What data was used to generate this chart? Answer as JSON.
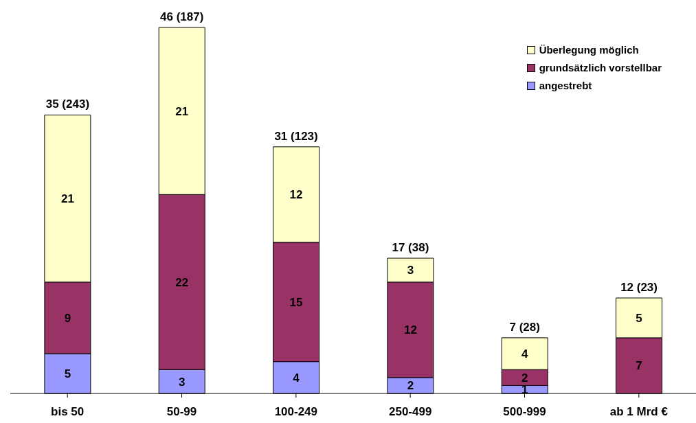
{
  "chart_data": {
    "type": "bar",
    "stacked": true,
    "categories": [
      "bis 50",
      "50-99",
      "100-249",
      "250-499",
      "500-999",
      "ab 1 Mrd €"
    ],
    "series": [
      {
        "name": "angestrebt",
        "color": "#9999ff",
        "values": [
          5,
          3,
          4,
          2,
          1,
          null
        ]
      },
      {
        "name": "grundsätzlich vorstellbar",
        "color": "#993366",
        "values": [
          9,
          22,
          15,
          12,
          2,
          7
        ]
      },
      {
        "name": "Überlegung möglich",
        "color": "#ffffcc",
        "values": [
          21,
          21,
          12,
          3,
          4,
          5
        ]
      }
    ],
    "totals": [
      "35 (243)",
      "46 (187)",
      "31 (123)",
      "17 (38)",
      "7 (28)",
      "12 (23)"
    ],
    "data_labels": true,
    "legend": "top right"
  }
}
